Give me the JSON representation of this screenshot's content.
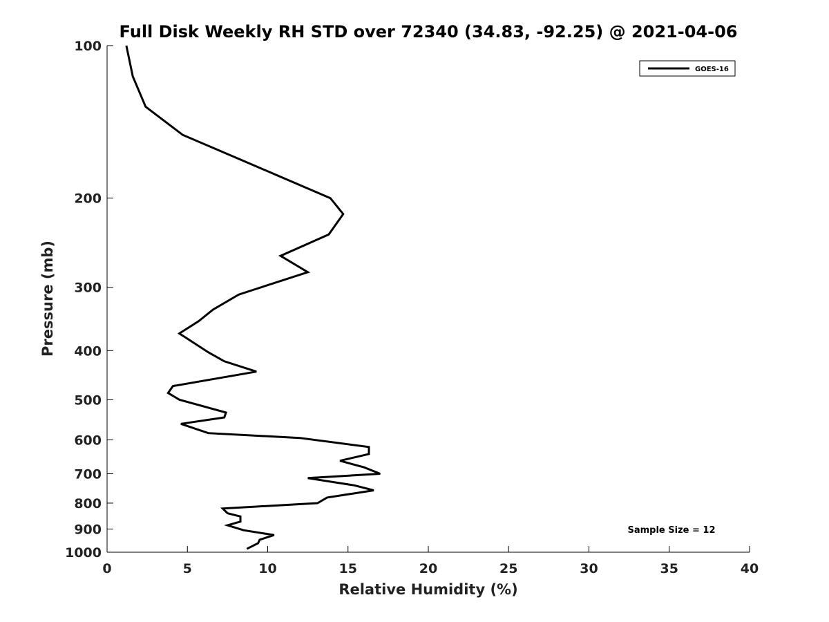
{
  "chart_data": {
    "type": "line",
    "title": "Full Disk Weekly RH STD over 72340 (34.83, -92.25) @ 2021-04-06",
    "xlabel": "Relative Humidity (%)",
    "ylabel": "Pressure (mb)",
    "xlim": [
      0,
      40
    ],
    "ylim": [
      1000,
      100
    ],
    "yscale": "log",
    "y_reversed": true,
    "x_ticks": [
      "0",
      "5",
      "10",
      "15",
      "20",
      "25",
      "30",
      "35",
      "40"
    ],
    "y_ticks": [
      "100",
      "200",
      "300",
      "400",
      "500",
      "600",
      "700",
      "800",
      "900",
      "1000"
    ],
    "grid": false,
    "legend_position": "top-right",
    "annotation": "Sample Size = 12",
    "series": [
      {
        "name": "GOES-16",
        "color": "#000000",
        "x": [
          1.2,
          1.6,
          2.4,
          4.7,
          8.7,
          13.9,
          14.7,
          13.8,
          10.8,
          12.5,
          8.2,
          6.6,
          5.7,
          4.5,
          6.3,
          7.3,
          9.3,
          4.1,
          3.8,
          4.5,
          7.4,
          7.3,
          4.6,
          6.3,
          12.0,
          16.3,
          16.3,
          14.5,
          16.0,
          17.0,
          12.5,
          15.4,
          16.6,
          13.7,
          13.1,
          7.2,
          7.5,
          8.3,
          8.3,
          7.5,
          8.5,
          10.4,
          9.5,
          9.4,
          8.7
        ],
        "y": [
          100,
          115,
          132,
          150,
          170,
          200,
          215,
          236,
          260,
          280,
          310,
          332,
          350,
          370,
          403,
          420,
          440,
          470,
          485,
          500,
          530,
          542,
          558,
          582,
          595,
          620,
          640,
          660,
          680,
          700,
          714,
          738,
          755,
          780,
          800,
          820,
          838,
          850,
          870,
          885,
          905,
          925,
          945,
          960,
          985
        ]
      }
    ]
  }
}
